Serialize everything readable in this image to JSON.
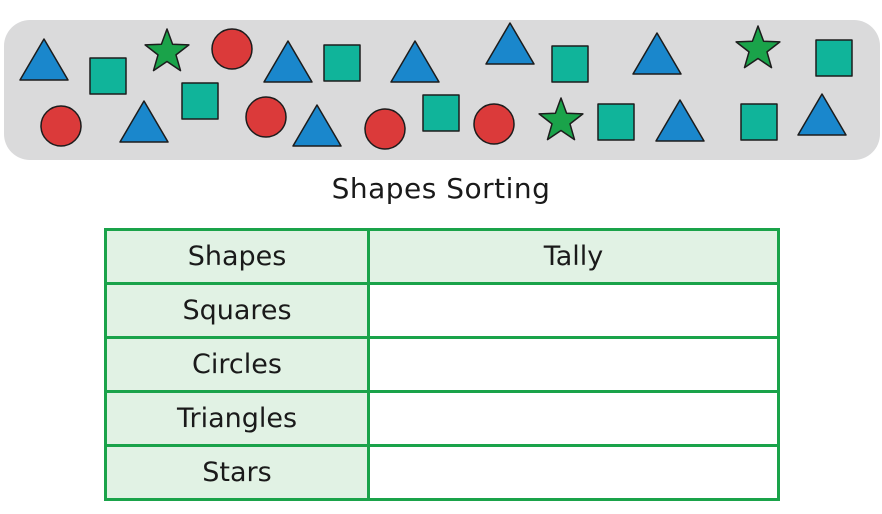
{
  "title": "Shapes Sorting",
  "colors": {
    "triangle": "#1a87cc",
    "square": "#10b49a",
    "circle": "#db3a3a",
    "star": "#1aa34a",
    "tray": "#dadadb",
    "table_border": "#1aa34a",
    "header_fill": "#e1f2e4"
  },
  "shapes_row_1": [
    "triangle",
    "square",
    "star",
    "circle",
    "triangle",
    "square",
    "triangle",
    "triangle",
    "square",
    "triangle",
    "star",
    "square"
  ],
  "shapes_row_2": [
    "circle",
    "triangle",
    "square",
    "circle",
    "triangle",
    "circle",
    "square",
    "circle",
    "star",
    "square",
    "triangle",
    "square",
    "triangle"
  ],
  "table": {
    "headers": [
      "Shapes",
      "Tally"
    ],
    "rows": [
      {
        "shape": "Squares",
        "tally": ""
      },
      {
        "shape": "Circles",
        "tally": ""
      },
      {
        "shape": "Triangles",
        "tally": ""
      },
      {
        "shape": "Stars",
        "tally": ""
      }
    ]
  }
}
